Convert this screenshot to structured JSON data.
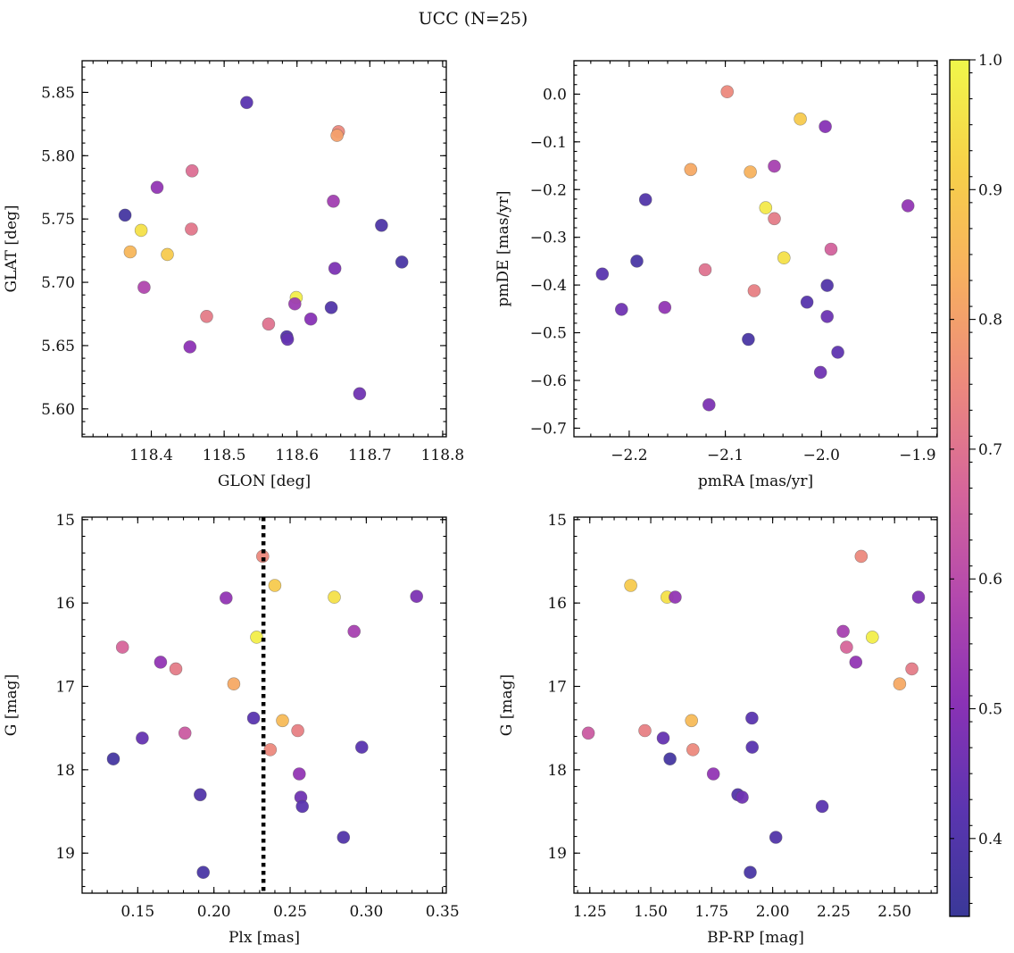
{
  "figure": {
    "title": "UCC (N=25)"
  },
  "colorbar": {
    "range": [
      0.34,
      1.0
    ],
    "ticks": [
      0.4,
      0.5,
      0.6,
      0.7,
      0.8,
      0.9,
      1.0
    ],
    "tick_labels": [
      "0.4",
      "0.5",
      "0.6",
      "0.7",
      "0.8",
      "0.9",
      "1.0"
    ],
    "colormap": "plasma",
    "colormap_stops": [
      "#3a3898",
      "#5b35b0",
      "#8a32b5",
      "#b449ad",
      "#d6669a",
      "#ed8a7c",
      "#f7b05f",
      "#f7d149",
      "#f0f74a"
    ]
  },
  "chart_data": [
    {
      "type": "scatter",
      "id": "glon-glat",
      "xlabel": "GLON [deg]",
      "ylabel": "GLAT [deg]",
      "xlim": [
        118.305,
        118.805
      ],
      "ylim": [
        5.578,
        5.875
      ],
      "xticks": [
        118.4,
        118.5,
        118.6,
        118.7,
        118.8
      ],
      "xtick_labels": [
        "118.4",
        "118.5",
        "118.6",
        "118.7",
        "118.8"
      ],
      "yticks": [
        5.6,
        5.65,
        5.7,
        5.75,
        5.8,
        5.85
      ],
      "ytick_labels": [
        "5.60",
        "5.65",
        "5.70",
        "5.75",
        "5.80",
        "5.85"
      ],
      "points": [
        {
          "x": 118.531,
          "y": 5.842,
          "c": 0.42
        },
        {
          "x": 118.657,
          "y": 5.819,
          "c": 0.75
        },
        {
          "x": 118.655,
          "y": 5.816,
          "c": 0.8
        },
        {
          "x": 118.456,
          "y": 5.788,
          "c": 0.69
        },
        {
          "x": 118.408,
          "y": 5.775,
          "c": 0.52
        },
        {
          "x": 118.65,
          "y": 5.764,
          "c": 0.55
        },
        {
          "x": 118.364,
          "y": 5.753,
          "c": 0.37
        },
        {
          "x": 118.716,
          "y": 5.745,
          "c": 0.39
        },
        {
          "x": 118.455,
          "y": 5.742,
          "c": 0.71
        },
        {
          "x": 118.386,
          "y": 5.741,
          "c": 0.95
        },
        {
          "x": 118.371,
          "y": 5.724,
          "c": 0.85
        },
        {
          "x": 118.422,
          "y": 5.722,
          "c": 0.9
        },
        {
          "x": 118.744,
          "y": 5.716,
          "c": 0.38
        },
        {
          "x": 118.652,
          "y": 5.711,
          "c": 0.48
        },
        {
          "x": 118.39,
          "y": 5.696,
          "c": 0.58
        },
        {
          "x": 118.599,
          "y": 5.688,
          "c": 0.98
        },
        {
          "x": 118.597,
          "y": 5.683,
          "c": 0.54
        },
        {
          "x": 118.647,
          "y": 5.68,
          "c": 0.4
        },
        {
          "x": 118.476,
          "y": 5.673,
          "c": 0.72
        },
        {
          "x": 118.619,
          "y": 5.671,
          "c": 0.5
        },
        {
          "x": 118.561,
          "y": 5.667,
          "c": 0.7
        },
        {
          "x": 118.586,
          "y": 5.657,
          "c": 0.4
        },
        {
          "x": 118.587,
          "y": 5.655,
          "c": 0.44
        },
        {
          "x": 118.453,
          "y": 5.649,
          "c": 0.51
        },
        {
          "x": 118.686,
          "y": 5.612,
          "c": 0.46
        }
      ]
    },
    {
      "type": "scatter",
      "id": "pmra-pmde",
      "xlabel": "pmRA [mas/yr]",
      "ylabel": "pmDE [mas/yr]",
      "xlim": [
        -2.2575,
        -1.8795
      ],
      "ylim": [
        -0.718,
        0.07
      ],
      "xticks": [
        -2.2,
        -2.1,
        -2.0,
        -1.9
      ],
      "xtick_labels": [
        "−2.2",
        "−2.1",
        "−2.0",
        "−1.9"
      ],
      "yticks": [
        0.0,
        -0.1,
        -0.2,
        -0.3,
        -0.4,
        -0.5,
        -0.6,
        -0.7
      ],
      "ytick_labels": [
        "0.0",
        "−0.1",
        "−0.2",
        "−0.3",
        "−0.4",
        "−0.5",
        "−0.6",
        "−0.7"
      ],
      "points": [
        {
          "x": -2.098,
          "y": 0.005,
          "c": 0.75
        },
        {
          "x": -2.022,
          "y": -0.052,
          "c": 0.9
        },
        {
          "x": -1.996,
          "y": -0.068,
          "c": 0.5
        },
        {
          "x": -2.049,
          "y": -0.151,
          "c": 0.56
        },
        {
          "x": -2.136,
          "y": -0.158,
          "c": 0.82
        },
        {
          "x": -2.074,
          "y": -0.163,
          "c": 0.84
        },
        {
          "x": -2.183,
          "y": -0.221,
          "c": 0.4
        },
        {
          "x": -1.91,
          "y": -0.234,
          "c": 0.52
        },
        {
          "x": -2.058,
          "y": -0.238,
          "c": 0.97
        },
        {
          "x": -2.049,
          "y": -0.261,
          "c": 0.72
        },
        {
          "x": -1.99,
          "y": -0.325,
          "c": 0.66
        },
        {
          "x": -2.039,
          "y": -0.343,
          "c": 0.95
        },
        {
          "x": -2.192,
          "y": -0.35,
          "c": 0.38
        },
        {
          "x": -2.121,
          "y": -0.368,
          "c": 0.7
        },
        {
          "x": -2.228,
          "y": -0.377,
          "c": 0.42
        },
        {
          "x": -1.994,
          "y": -0.401,
          "c": 0.4
        },
        {
          "x": -2.07,
          "y": -0.412,
          "c": 0.73
        },
        {
          "x": -2.015,
          "y": -0.436,
          "c": 0.41
        },
        {
          "x": -2.163,
          "y": -0.447,
          "c": 0.52
        },
        {
          "x": -2.208,
          "y": -0.451,
          "c": 0.46
        },
        {
          "x": -1.994,
          "y": -0.466,
          "c": 0.45
        },
        {
          "x": -2.076,
          "y": -0.514,
          "c": 0.38
        },
        {
          "x": -1.983,
          "y": -0.541,
          "c": 0.43
        },
        {
          "x": -2.001,
          "y": -0.583,
          "c": 0.46
        },
        {
          "x": -2.117,
          "y": -0.651,
          "c": 0.48
        }
      ]
    },
    {
      "type": "scatter",
      "id": "plx-g",
      "xlabel": "Plx [mas]",
      "ylabel": "G [mag]",
      "xlim": [
        0.1135,
        0.3525
      ],
      "ylim": [
        19.48,
        14.97
      ],
      "y_inverted": true,
      "xticks": [
        0.15,
        0.2,
        0.25,
        0.3,
        0.35
      ],
      "xtick_labels": [
        "0.15",
        "0.20",
        "0.25",
        "0.30",
        "0.35"
      ],
      "yticks": [
        15,
        16,
        17,
        18,
        19
      ],
      "ytick_labels": [
        "15",
        "16",
        "17",
        "18",
        "19"
      ],
      "vline": {
        "x": 0.2325,
        "style": "dotted"
      },
      "points": [
        {
          "x": 0.232,
          "y": 15.44,
          "c": 0.75
        },
        {
          "x": 0.24,
          "y": 15.79,
          "c": 0.9
        },
        {
          "x": 0.208,
          "y": 15.94,
          "c": 0.52
        },
        {
          "x": 0.279,
          "y": 15.93,
          "c": 0.95
        },
        {
          "x": 0.333,
          "y": 15.92,
          "c": 0.48
        },
        {
          "x": 0.292,
          "y": 16.34,
          "c": 0.56
        },
        {
          "x": 0.228,
          "y": 16.41,
          "c": 0.98
        },
        {
          "x": 0.14,
          "y": 16.53,
          "c": 0.67
        },
        {
          "x": 0.165,
          "y": 16.71,
          "c": 0.52
        },
        {
          "x": 0.175,
          "y": 16.79,
          "c": 0.72
        },
        {
          "x": 0.213,
          "y": 16.97,
          "c": 0.82
        },
        {
          "x": 0.226,
          "y": 17.38,
          "c": 0.42
        },
        {
          "x": 0.245,
          "y": 17.41,
          "c": 0.86
        },
        {
          "x": 0.255,
          "y": 17.53,
          "c": 0.73
        },
        {
          "x": 0.181,
          "y": 17.56,
          "c": 0.64
        },
        {
          "x": 0.153,
          "y": 17.62,
          "c": 0.44
        },
        {
          "x": 0.297,
          "y": 17.73,
          "c": 0.42
        },
        {
          "x": 0.237,
          "y": 17.76,
          "c": 0.75
        },
        {
          "x": 0.134,
          "y": 17.87,
          "c": 0.37
        },
        {
          "x": 0.256,
          "y": 18.05,
          "c": 0.52
        },
        {
          "x": 0.191,
          "y": 18.3,
          "c": 0.4
        },
        {
          "x": 0.257,
          "y": 18.33,
          "c": 0.46
        },
        {
          "x": 0.258,
          "y": 18.44,
          "c": 0.42
        },
        {
          "x": 0.285,
          "y": 18.81,
          "c": 0.4
        },
        {
          "x": 0.193,
          "y": 19.23,
          "c": 0.38
        }
      ]
    },
    {
      "type": "scatter",
      "id": "bprp-g",
      "xlabel": "BP-RP [mag]",
      "ylabel": "G [mag]",
      "xlim": [
        1.185,
        2.675
      ],
      "ylim": [
        19.48,
        14.97
      ],
      "y_inverted": true,
      "xticks": [
        1.25,
        1.5,
        1.75,
        2.0,
        2.25,
        2.5
      ],
      "xtick_labels": [
        "1.25",
        "1.50",
        "1.75",
        "2.00",
        "2.25",
        "2.50"
      ],
      "yticks": [
        15,
        16,
        17,
        18,
        19
      ],
      "ytick_labels": [
        "15",
        "16",
        "17",
        "18",
        "19"
      ],
      "points": [
        {
          "x": 2.363,
          "y": 15.44,
          "c": 0.75
        },
        {
          "x": 1.418,
          "y": 15.79,
          "c": 0.9
        },
        {
          "x": 1.567,
          "y": 15.93,
          "c": 0.95
        },
        {
          "x": 1.6,
          "y": 15.93,
          "c": 0.52
        },
        {
          "x": 2.598,
          "y": 15.93,
          "c": 0.48
        },
        {
          "x": 2.289,
          "y": 16.34,
          "c": 0.56
        },
        {
          "x": 2.409,
          "y": 16.41,
          "c": 0.98
        },
        {
          "x": 2.303,
          "y": 16.53,
          "c": 0.67
        },
        {
          "x": 2.341,
          "y": 16.71,
          "c": 0.52
        },
        {
          "x": 2.571,
          "y": 16.79,
          "c": 0.72
        },
        {
          "x": 2.521,
          "y": 16.97,
          "c": 0.82
        },
        {
          "x": 1.915,
          "y": 17.38,
          "c": 0.42
        },
        {
          "x": 1.667,
          "y": 17.41,
          "c": 0.86
        },
        {
          "x": 1.476,
          "y": 17.53,
          "c": 0.73
        },
        {
          "x": 1.244,
          "y": 17.56,
          "c": 0.64
        },
        {
          "x": 1.551,
          "y": 17.62,
          "c": 0.44
        },
        {
          "x": 1.916,
          "y": 17.73,
          "c": 0.42
        },
        {
          "x": 1.673,
          "y": 17.76,
          "c": 0.75
        },
        {
          "x": 1.579,
          "y": 17.87,
          "c": 0.37
        },
        {
          "x": 1.757,
          "y": 18.05,
          "c": 0.52
        },
        {
          "x": 1.857,
          "y": 18.3,
          "c": 0.4
        },
        {
          "x": 1.875,
          "y": 18.33,
          "c": 0.46
        },
        {
          "x": 2.203,
          "y": 18.44,
          "c": 0.42
        },
        {
          "x": 2.013,
          "y": 18.81,
          "c": 0.4
        },
        {
          "x": 1.908,
          "y": 19.23,
          "c": 0.38
        }
      ]
    }
  ]
}
